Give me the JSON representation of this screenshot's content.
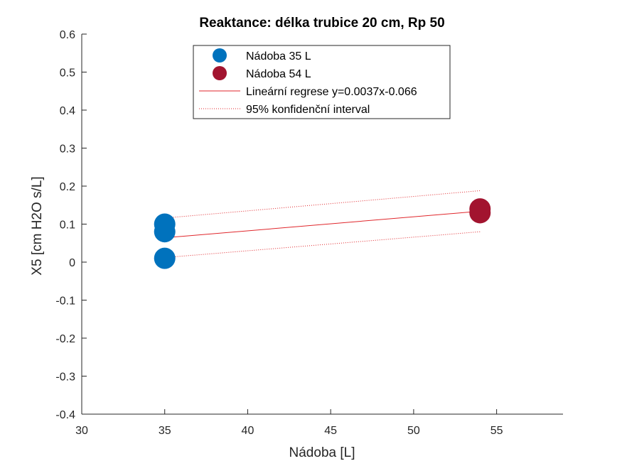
{
  "chart_data": {
    "type": "scatter",
    "title": "Reaktance: délka trubice 20 cm, Rp 50",
    "xlabel": "Nádoba [L]",
    "ylabel": "X5 [cm H2O s/L]",
    "xlim": [
      30,
      59
    ],
    "ylim": [
      -0.4,
      0.6
    ],
    "xticks": [
      30,
      35,
      40,
      45,
      50,
      55
    ],
    "yticks": [
      -0.4,
      -0.3,
      -0.2,
      -0.1,
      0,
      0.1,
      0.2,
      0.3,
      0.4,
      0.5,
      0.6
    ],
    "xtick_labels": [
      "30",
      "35",
      "40",
      "45",
      "50",
      "55"
    ],
    "ytick_labels": [
      "-0.4",
      "-0.3",
      "-0.2",
      "-0.1",
      "0",
      "0.1",
      "0.2",
      "0.3",
      "0.4",
      "0.5",
      "0.6"
    ],
    "grid": false,
    "legend_position": "top-center",
    "series": [
      {
        "name": "Nádoba 35 L",
        "kind": "scatter",
        "color": "#0072BD",
        "points": [
          [
            35,
            0.1
          ],
          [
            35,
            0.08
          ],
          [
            35,
            0.01
          ]
        ]
      },
      {
        "name": "Nádoba 54 L",
        "kind": "scatter",
        "color": "#A2142F",
        "points": [
          [
            54,
            0.14
          ],
          [
            54,
            0.13
          ]
        ]
      },
      {
        "name": "Lineární regrese y=0.0037x-0.066",
        "kind": "line",
        "color": "#E0262B",
        "points": [
          [
            35,
            0.064
          ],
          [
            54,
            0.134
          ]
        ]
      },
      {
        "name": "95% konfidenční interval",
        "kind": "dotted",
        "color": "#E0262B",
        "lower": [
          [
            35,
            0.012
          ],
          [
            54,
            0.08
          ]
        ],
        "upper": [
          [
            35,
            0.116
          ],
          [
            54,
            0.188
          ]
        ]
      }
    ]
  }
}
